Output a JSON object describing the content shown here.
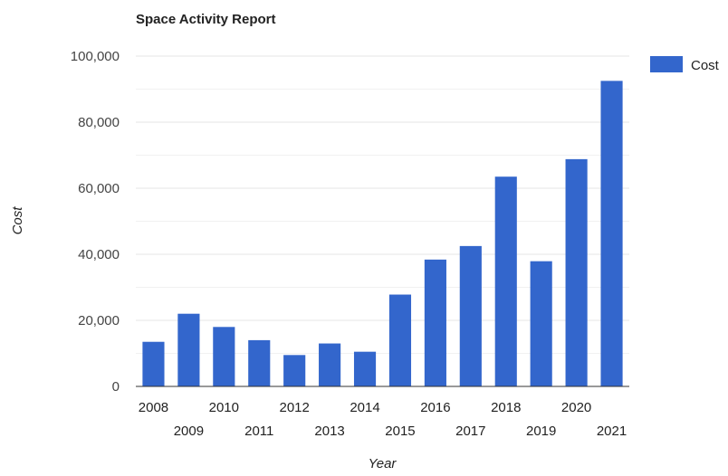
{
  "chart_data": {
    "type": "bar",
    "title": "Space Activity Report",
    "xlabel": "Year",
    "ylabel": "Cost",
    "categories": [
      "2008",
      "2009",
      "2010",
      "2011",
      "2012",
      "2013",
      "2014",
      "2015",
      "2016",
      "2017",
      "2018",
      "2019",
      "2020",
      "2021"
    ],
    "series": [
      {
        "name": "Cost",
        "color": "#3366cc",
        "values": [
          13500,
          22000,
          18000,
          14000,
          9500,
          13000,
          10500,
          27800,
          38400,
          42500,
          63500,
          37900,
          68800,
          92500
        ]
      }
    ],
    "ylim": [
      0,
      100000
    ],
    "yticks": [
      "0",
      "20,000",
      "40,000",
      "60,000",
      "80,000",
      "100,000"
    ],
    "grid": true,
    "legend_position": "top-right"
  }
}
